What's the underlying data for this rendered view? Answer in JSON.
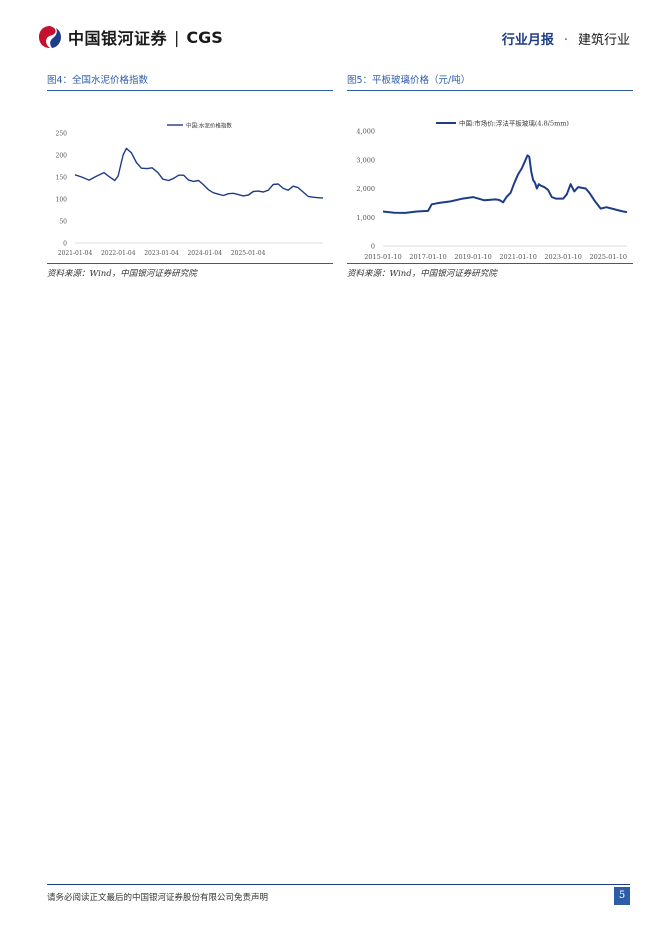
{
  "header": {
    "logo_cn": "中国银河证券",
    "logo_sep": "|",
    "logo_en": "CGS",
    "report_type": "行业月报",
    "dot": "·",
    "industry": "建筑行业"
  },
  "figures": [
    {
      "title": "图4：全国水泥价格指数",
      "source": "资料来源：Wind，中国银河证券研究院"
    },
    {
      "title": "图5：平板玻璃价格（元/吨）",
      "source": "资料来源：Wind，中国银河证券研究院"
    }
  ],
  "chart_data": [
    {
      "type": "line",
      "series": [
        {
          "name": "中国:水泥价格指数",
          "color": "#1f3c88",
          "values": [
            [
              "2021-01-04",
              155
            ],
            [
              "2021-03-01",
              150
            ],
            [
              "2021-05-03",
              143
            ],
            [
              "2021-07-05",
              152
            ],
            [
              "2021-09-06",
              160
            ],
            [
              "2021-10-18",
              151
            ],
            [
              "2021-12-06",
              142
            ],
            [
              "2022-01-03",
              152
            ],
            [
              "2022-02-14",
              200
            ],
            [
              "2022-03-14",
              215
            ],
            [
              "2022-04-25",
              205
            ],
            [
              "2022-06-06",
              183
            ],
            [
              "2022-07-18",
              170
            ],
            [
              "2022-09-05",
              169
            ],
            [
              "2022-10-17",
              171
            ],
            [
              "2022-12-05",
              160
            ],
            [
              "2023-01-16",
              145
            ],
            [
              "2023-03-06",
              142
            ],
            [
              "2023-04-17",
              147
            ],
            [
              "2023-05-29",
              154
            ],
            [
              "2023-07-10",
              154
            ],
            [
              "2023-08-21",
              143
            ],
            [
              "2023-10-02",
              140
            ],
            [
              "2023-11-13",
              142
            ],
            [
              "2023-12-25",
              132
            ],
            [
              "2024-02-05",
              121
            ],
            [
              "2024-03-18",
              114
            ],
            [
              "2024-04-29",
              111
            ],
            [
              "2024-06-10",
              108
            ],
            [
              "2024-07-22",
              112
            ],
            [
              "2024-09-02",
              113
            ],
            [
              "2024-10-14",
              110
            ],
            [
              "2024-11-25",
              107
            ],
            [
              "2025-01-06",
              109
            ],
            [
              "2025-02-17",
              117
            ],
            [
              "2025-03-31",
              118
            ],
            [
              "2025-05-12",
              116
            ],
            [
              "2025-06-23",
              120
            ],
            [
              "2025-08-04",
              133
            ],
            [
              "2025-09-15",
              134
            ],
            [
              "2025-10-27",
              124
            ],
            [
              "2025-12-08",
              120
            ],
            [
              "2026-01-19",
              129
            ],
            [
              "2026-03-02",
              126
            ],
            [
              "2026-04-13",
              116
            ],
            [
              "2026-05-25",
              106
            ],
            [
              "2026-07-06",
              104
            ],
            [
              "2026-08-17",
              103
            ],
            [
              "2026-09-28",
              102
            ]
          ]
        }
      ],
      "x_ticks": [
        "2021-01-04",
        "2022-01-04",
        "2023-01-04",
        "2024-01-04",
        "2025-01-04"
      ],
      "x_tick_labels": [
        "2021-01-04",
        "2022-01-04",
        "2023-01-04",
        "2024-01-04",
        "2025-01-04"
      ],
      "ylim": [
        0,
        250
      ],
      "y_ticks": [
        0,
        50,
        100,
        150,
        200,
        250
      ],
      "legend": "top-center",
      "grid": false
    },
    {
      "type": "line",
      "series": [
        {
          "name": "中国:市场价:浮法平板玻璃(4.8/5mm)",
          "color": "#1f3c88",
          "values": [
            [
              "2015-01-10",
              1200
            ],
            [
              "2015-07-10",
              1160
            ],
            [
              "2016-01-10",
              1150
            ],
            [
              "2016-07-10",
              1200
            ],
            [
              "2017-01-10",
              1220
            ],
            [
              "2017-03-10",
              1450
            ],
            [
              "2017-07-10",
              1500
            ],
            [
              "2018-01-10",
              1550
            ],
            [
              "2018-07-10",
              1640
            ],
            [
              "2019-01-10",
              1700
            ],
            [
              "2019-07-10",
              1590
            ],
            [
              "2020-01-10",
              1620
            ],
            [
              "2020-03-10",
              1600
            ],
            [
              "2020-05-10",
              1520
            ],
            [
              "2020-07-10",
              1720
            ],
            [
              "2020-09-10",
              1850
            ],
            [
              "2020-11-10",
              2200
            ],
            [
              "2021-01-10",
              2500
            ],
            [
              "2021-03-10",
              2700
            ],
            [
              "2021-05-10",
              3000
            ],
            [
              "2021-06-10",
              3150
            ],
            [
              "2021-07-10",
              3100
            ],
            [
              "2021-08-10",
              2600
            ],
            [
              "2021-09-10",
              2300
            ],
            [
              "2021-10-10",
              2200
            ],
            [
              "2021-11-10",
              2000
            ],
            [
              "2021-12-10",
              2150
            ],
            [
              "2022-01-10",
              2100
            ],
            [
              "2022-03-10",
              2050
            ],
            [
              "2022-05-10",
              1950
            ],
            [
              "2022-07-10",
              1700
            ],
            [
              "2022-09-10",
              1650
            ],
            [
              "2023-01-10",
              1650
            ],
            [
              "2023-03-10",
              1800
            ],
            [
              "2023-05-10",
              2150
            ],
            [
              "2023-07-10",
              1900
            ],
            [
              "2023-09-10",
              2050
            ],
            [
              "2024-01-10",
              2000
            ],
            [
              "2024-03-10",
              1850
            ],
            [
              "2024-06-10",
              1550
            ],
            [
              "2024-09-10",
              1300
            ],
            [
              "2024-12-10",
              1350
            ],
            [
              "2025-03-10",
              1300
            ],
            [
              "2025-06-10",
              1250
            ],
            [
              "2025-09-10",
              1200
            ],
            [
              "2025-11-10",
              1180
            ]
          ]
        }
      ],
      "x_ticks": [
        "2015-01-10",
        "2017-01-10",
        "2019-01-10",
        "2021-01-10",
        "2023-01-10",
        "2025-01-10"
      ],
      "x_tick_labels": [
        "2015-01-10",
        "2017-01-10",
        "2019-01-10",
        "2021-01-10",
        "2023-01-10",
        "2025-01-10"
      ],
      "ylim": [
        0,
        4000
      ],
      "y_ticks": [
        0,
        1000,
        2000,
        3000,
        4000
      ],
      "y_tick_labels": [
        "0",
        "1,000",
        "2,000",
        "3,000",
        "4,000"
      ],
      "legend": "top-center",
      "grid": false
    }
  ],
  "footer": {
    "disclaimer": "请务必阅读正文最后的中国银河证券股份有限公司免责声明",
    "page": "5"
  }
}
